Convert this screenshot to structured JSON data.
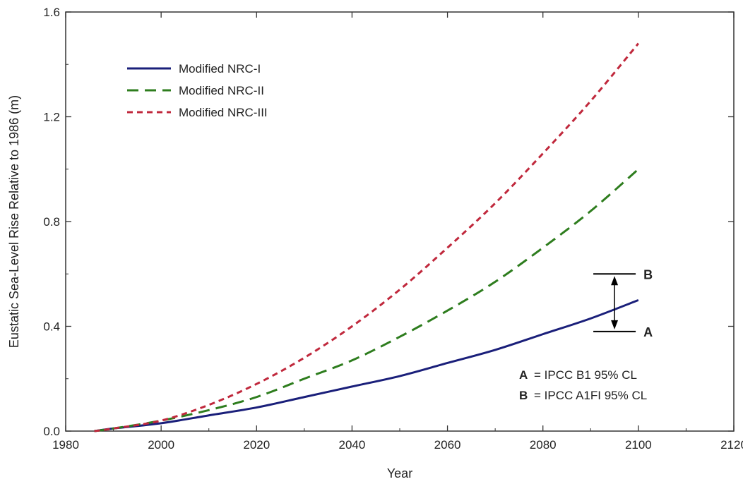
{
  "chart_data": {
    "type": "line",
    "xlabel": "Year",
    "ylabel": "Eustatic Sea-Level Rise Relative to 1986 (m)",
    "xlim": [
      1980,
      2120
    ],
    "ylim": [
      0.0,
      1.6
    ],
    "x_ticks": [
      "1980",
      "2000",
      "2020",
      "2040",
      "2060",
      "2080",
      "2100",
      "2120"
    ],
    "y_ticks": [
      "0.0",
      "0.4",
      "0.8",
      "1.2",
      "1.6"
    ],
    "grid": false,
    "legend_position": "top-left",
    "series": [
      {
        "name": "Modified NRC-I",
        "color": "#1a1f7a",
        "dash": "solid",
        "x": [
          1986,
          1990,
          2000,
          2010,
          2020,
          2030,
          2040,
          2050,
          2060,
          2070,
          2080,
          2090,
          2100
        ],
        "values": [
          0.0,
          0.01,
          0.03,
          0.06,
          0.09,
          0.13,
          0.17,
          0.21,
          0.26,
          0.31,
          0.37,
          0.43,
          0.5
        ]
      },
      {
        "name": "Modified NRC-II",
        "color": "#2e7d1e",
        "dash": "long",
        "x": [
          1986,
          1990,
          2000,
          2010,
          2020,
          2030,
          2040,
          2050,
          2060,
          2070,
          2080,
          2090,
          2100
        ],
        "values": [
          0.0,
          0.01,
          0.04,
          0.08,
          0.13,
          0.2,
          0.27,
          0.36,
          0.46,
          0.57,
          0.7,
          0.84,
          1.0
        ]
      },
      {
        "name": "Modified NRC-III",
        "color": "#c0283c",
        "dash": "short",
        "x": [
          1986,
          1990,
          2000,
          2010,
          2020,
          2030,
          2040,
          2050,
          2060,
          2070,
          2080,
          2090,
          2100
        ],
        "values": [
          0.0,
          0.01,
          0.04,
          0.1,
          0.18,
          0.28,
          0.4,
          0.54,
          0.7,
          0.87,
          1.06,
          1.26,
          1.48
        ]
      }
    ],
    "annotations": {
      "marker_year": 2095,
      "upper": {
        "label": "B",
        "value": 0.6
      },
      "lower": {
        "label": "A",
        "value": 0.38
      },
      "notes": [
        {
          "key": "A",
          "text": "= IPCC B1 95% CL"
        },
        {
          "key": "B",
          "text": "= IPCC A1FI  95% CL"
        }
      ]
    }
  }
}
